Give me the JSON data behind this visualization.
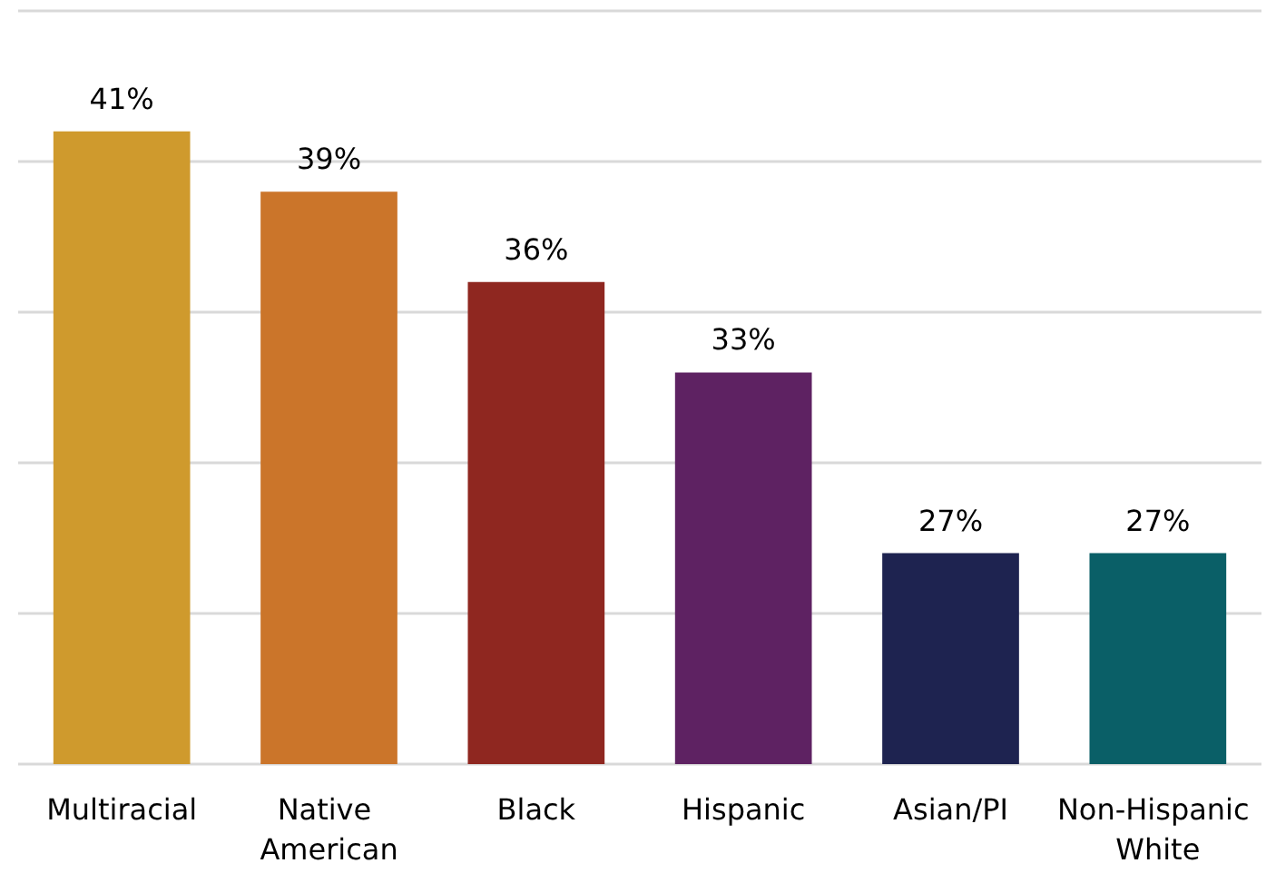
{
  "chart_data": {
    "type": "bar",
    "categories": [
      "Multiracial",
      "Native American",
      "Black",
      "Hispanic",
      "Asian/PI",
      "Non-Hispanic White"
    ],
    "values": [
      41,
      39,
      36,
      33,
      27,
      27
    ],
    "colors": [
      "#cf9a2d",
      "#cb752a",
      "#8f2720",
      "#5e2262",
      "#1e2350",
      "#0a5f67"
    ],
    "value_labels": [
      "41%",
      "39%",
      "36%",
      "33%",
      "27%",
      "27%"
    ],
    "ylim": [
      20,
      45
    ],
    "yticks": [
      {
        "value": 20,
        "label": null
      },
      {
        "value": 25,
        "label": null
      },
      {
        "value": 30,
        "label": null
      },
      {
        "value": 35,
        "label": null
      },
      {
        "value": 40,
        "label": null
      },
      {
        "value": 45,
        "label": null
      }
    ],
    "grid": "y",
    "tick_labels": "x"
  }
}
